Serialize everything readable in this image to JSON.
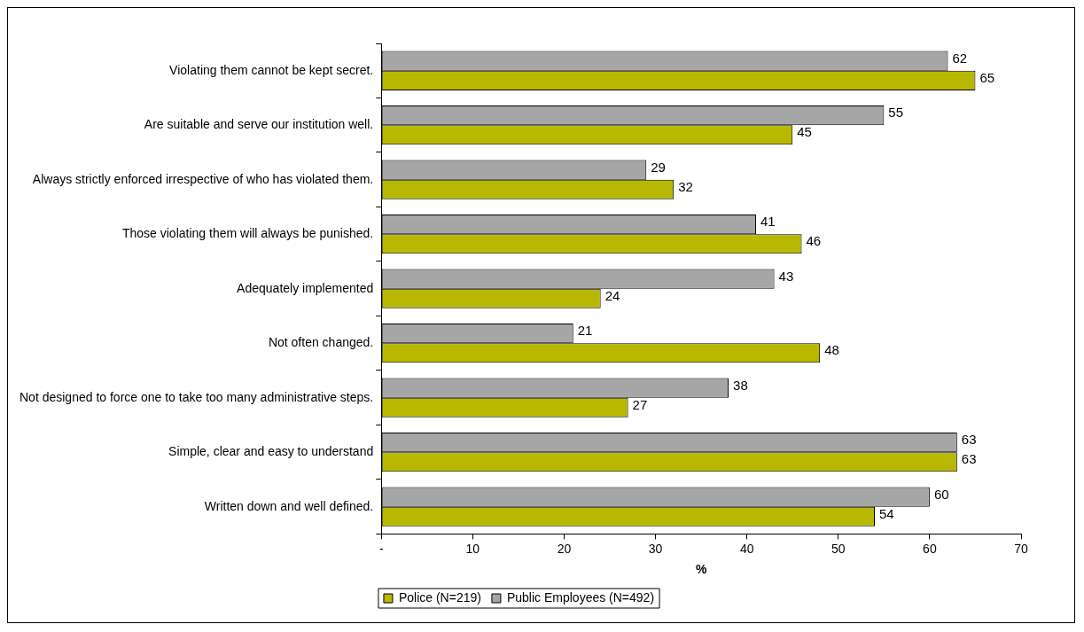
{
  "chart_data": {
    "type": "bar",
    "orientation": "horizontal",
    "xlabel": "%",
    "categories": [
      "Violating them cannot be kept secret.",
      "Are suitable and serve our institution well.",
      "Always strictly enforced irrespective of who has violated them.",
      "Those violating them will always be punished.",
      "Adequately implemented",
      "Not often changed.",
      "Not designed to force one to take too many administrative steps.",
      "Simple, clear and easy to understand",
      "Written down and well defined."
    ],
    "series": [
      {
        "name": "Police (N=219)",
        "color": "#b8b800",
        "values": [
          65,
          45,
          32,
          46,
          24,
          48,
          27,
          63,
          54
        ]
      },
      {
        "name": "Public Employees (N=492)",
        "color": "#a6a6a6",
        "values": [
          62,
          55,
          29,
          41,
          43,
          21,
          38,
          63,
          60
        ]
      }
    ],
    "xlim": [
      0,
      70
    ],
    "xticks": [
      {
        "value": 0,
        "label": "-"
      },
      10,
      20,
      30,
      40,
      50,
      60,
      70
    ],
    "data_labels": true,
    "grid": false,
    "legend": "bottom"
  }
}
